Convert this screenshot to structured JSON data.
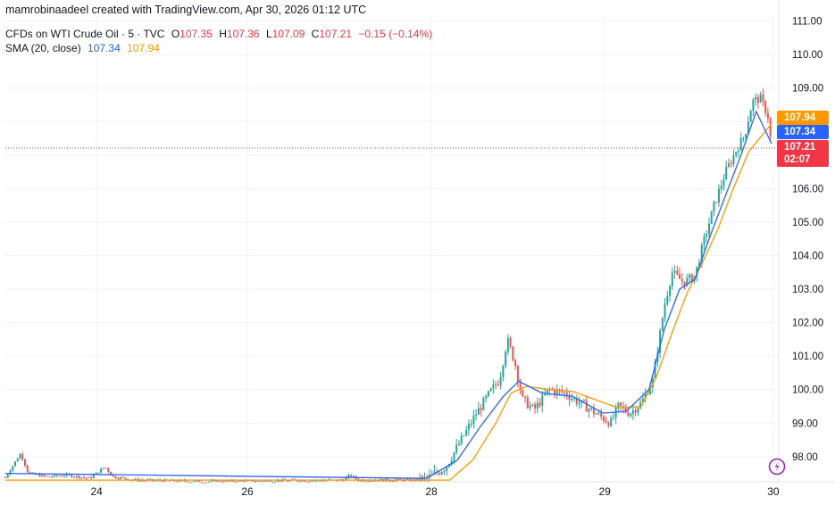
{
  "header": {
    "credit": "mamrobinaadeel created with TradingView.com, Apr 30, 2026 01:12 UTC",
    "symbol": "CFDs on WTI Crude Oil · 5 · TVC",
    "o_label": "O",
    "o_value": "107.35",
    "h_label": "H",
    "h_value": "107.36",
    "l_label": "L",
    "l_value": "107.09",
    "c_label": "C",
    "c_value": "107.21",
    "change": "−0.15 (−0.14%)",
    "sma_label": "SMA (20, close)",
    "sma_value_1": "107.34",
    "sma_value_2": "107.94"
  },
  "price_tags": {
    "orange": "107.94",
    "blue": "107.34",
    "last": "107.21",
    "countdown": "02:07"
  },
  "colors": {
    "up": "#26a69a",
    "down": "#ef5350",
    "sma_blue": "#2962ff",
    "sma_orange": "#ff9800",
    "last_price": "#f23645",
    "grid": "#f0f3fa"
  },
  "icons": {
    "logo": "tradingview-logo-icon"
  },
  "chart_data": {
    "type": "candlestick",
    "x_ticks": [
      "24",
      "26",
      "28",
      "29",
      "30"
    ],
    "y_ticks": [
      "98.00",
      "99.00",
      "100.00",
      "101.00",
      "102.00",
      "103.00",
      "104.00",
      "105.00",
      "106.00",
      "107.00",
      "108.00",
      "109.00",
      "110.00",
      "111.00"
    ],
    "ylim": [
      97.25,
      111.15
    ],
    "last_price": 107.21,
    "grid": true,
    "price_path": [
      {
        "x": 0.006,
        "y": 97.6
      },
      {
        "x": 0.02,
        "y": 98.1
      },
      {
        "x": 0.03,
        "y": 97.5
      },
      {
        "x": 0.055,
        "y": 97.4
      },
      {
        "x": 0.08,
        "y": 97.45
      },
      {
        "x": 0.11,
        "y": 97.35
      },
      {
        "x": 0.13,
        "y": 97.7
      },
      {
        "x": 0.14,
        "y": 97.4
      },
      {
        "x": 0.17,
        "y": 97.3
      },
      {
        "x": 0.26,
        "y": 97.25
      },
      {
        "x": 0.44,
        "y": 97.3
      },
      {
        "x": 0.45,
        "y": 97.45
      },
      {
        "x": 0.46,
        "y": 97.3
      },
      {
        "x": 0.535,
        "y": 97.3
      },
      {
        "x": 0.555,
        "y": 97.4
      },
      {
        "x": 0.575,
        "y": 97.7
      },
      {
        "x": 0.595,
        "y": 98.5
      },
      {
        "x": 0.615,
        "y": 99.3
      },
      {
        "x": 0.635,
        "y": 100.0
      },
      {
        "x": 0.645,
        "y": 100.3
      },
      {
        "x": 0.655,
        "y": 101.5
      },
      {
        "x": 0.665,
        "y": 100.8
      },
      {
        "x": 0.675,
        "y": 99.7
      },
      {
        "x": 0.69,
        "y": 99.4
      },
      {
        "x": 0.71,
        "y": 100.0
      },
      {
        "x": 0.73,
        "y": 99.9
      },
      {
        "x": 0.75,
        "y": 99.6
      },
      {
        "x": 0.77,
        "y": 99.3
      },
      {
        "x": 0.79,
        "y": 99.0
      },
      {
        "x": 0.8,
        "y": 99.5
      },
      {
        "x": 0.815,
        "y": 99.3
      },
      {
        "x": 0.83,
        "y": 99.6
      },
      {
        "x": 0.845,
        "y": 100.3
      },
      {
        "x": 0.86,
        "y": 102.5
      },
      {
        "x": 0.87,
        "y": 103.5
      },
      {
        "x": 0.885,
        "y": 103.2
      },
      {
        "x": 0.9,
        "y": 103.4
      },
      {
        "x": 0.91,
        "y": 104.3
      },
      {
        "x": 0.925,
        "y": 105.5
      },
      {
        "x": 0.94,
        "y": 106.5
      },
      {
        "x": 0.955,
        "y": 107.2
      },
      {
        "x": 0.965,
        "y": 107.6
      },
      {
        "x": 0.975,
        "y": 108.6
      },
      {
        "x": 0.985,
        "y": 108.7
      },
      {
        "x": 0.995,
        "y": 108.2
      },
      {
        "x": 1.0,
        "y": 107.21
      }
    ],
    "sma20": [
      {
        "x": 0.0,
        "y": 97.5
      },
      {
        "x": 0.55,
        "y": 97.35
      },
      {
        "x": 0.59,
        "y": 97.9
      },
      {
        "x": 0.62,
        "y": 98.9
      },
      {
        "x": 0.65,
        "y": 99.8
      },
      {
        "x": 0.67,
        "y": 100.25
      },
      {
        "x": 0.7,
        "y": 99.9
      },
      {
        "x": 0.74,
        "y": 99.8
      },
      {
        "x": 0.78,
        "y": 99.3
      },
      {
        "x": 0.81,
        "y": 99.35
      },
      {
        "x": 0.84,
        "y": 100.0
      },
      {
        "x": 0.86,
        "y": 101.8
      },
      {
        "x": 0.88,
        "y": 103.0
      },
      {
        "x": 0.9,
        "y": 103.3
      },
      {
        "x": 0.92,
        "y": 104.6
      },
      {
        "x": 0.94,
        "y": 105.8
      },
      {
        "x": 0.96,
        "y": 107.0
      },
      {
        "x": 0.98,
        "y": 108.3
      },
      {
        "x": 1.0,
        "y": 107.34
      }
    ],
    "sma_long": [
      {
        "x": 0.0,
        "y": 97.3
      },
      {
        "x": 0.58,
        "y": 97.3
      },
      {
        "x": 0.61,
        "y": 97.9
      },
      {
        "x": 0.64,
        "y": 99.0
      },
      {
        "x": 0.66,
        "y": 99.9
      },
      {
        "x": 0.68,
        "y": 100.1
      },
      {
        "x": 0.71,
        "y": 100.0
      },
      {
        "x": 0.74,
        "y": 99.95
      },
      {
        "x": 0.77,
        "y": 99.7
      },
      {
        "x": 0.8,
        "y": 99.45
      },
      {
        "x": 0.83,
        "y": 99.5
      },
      {
        "x": 0.85,
        "y": 100.4
      },
      {
        "x": 0.87,
        "y": 101.7
      },
      {
        "x": 0.89,
        "y": 102.9
      },
      {
        "x": 0.91,
        "y": 103.8
      },
      {
        "x": 0.93,
        "y": 104.8
      },
      {
        "x": 0.95,
        "y": 106.0
      },
      {
        "x": 0.97,
        "y": 107.1
      },
      {
        "x": 1.0,
        "y": 107.94
      }
    ]
  }
}
